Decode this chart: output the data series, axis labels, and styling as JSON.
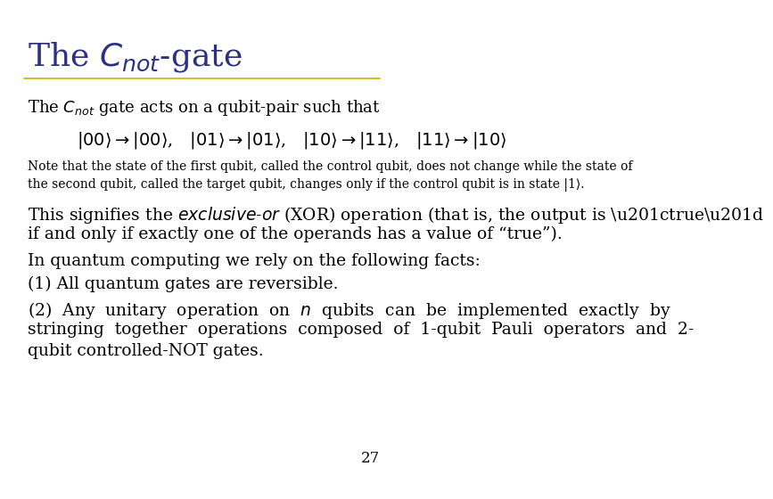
{
  "title_color": "#2d3080",
  "title_fontsize": 26,
  "separator_color": "#c8b400",
  "bg_color": "#ffffff",
  "text_color": "#000000",
  "body_fontsize": 13,
  "small_fontsize": 10,
  "large_body_fontsize": 13.5,
  "page_number": "27",
  "note1": "Note that the state of the first qubit, called the control qubit, does not change while the state of",
  "note2": "the second qubit, called the target qubit, changes only if the control qubit is in state |1⟩.",
  "para2": "In quantum computing we rely on the following facts:",
  "para3": "(1) All quantum gates are reversible.",
  "para4a": "(2)  Any  unitary  operation  on  ",
  "para4b": "  qubits  can  be  implemented  exactly  by",
  "para4c": "stringing  together  operations  composed  of  1-qubit  Pauli  operators  and  2-",
  "para4d": "qubit controlled-NOT gates."
}
